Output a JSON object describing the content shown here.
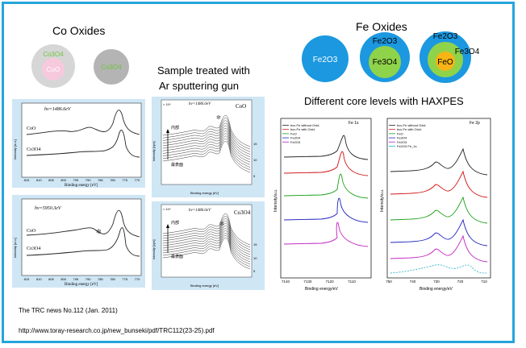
{
  "co_oxides": {
    "title": "Co Oxides",
    "core_shell": {
      "shell": "Co3O4",
      "core": "CoO",
      "shell_color": "#d6d6d6",
      "core_color": "#f7c9dc",
      "shell_text_color": "#6ec43c",
      "core_text_color": "#ffffff"
    },
    "single": {
      "label": "Co3O4",
      "color": "#b4b4b4",
      "text_color": "#6ec43c"
    }
  },
  "fe_oxides": {
    "title": "Fe Oxides",
    "particles": [
      {
        "layers": [
          "Fe2O3"
        ]
      },
      {
        "layers": [
          "Fe2O3",
          "Fe3O4"
        ]
      },
      {
        "layers": [
          "Fe2O3",
          "Fe3O4",
          "FeO"
        ]
      }
    ],
    "colors": {
      "fe2o3": "#1c98e0",
      "fe3o4": "#8fd34a",
      "feo": "#f6b416"
    }
  },
  "sputter": {
    "title_line1": "Sample treated with",
    "title_line2": "Ar sputtering gun"
  },
  "haxpes_title": "Different core levels with HAXPES",
  "plots": {
    "a1": {
      "energy": "hν=1486.6eV",
      "labels": [
        "CoO",
        "Co3O4"
      ],
      "ylabel": "Intensity [a.u.]",
      "xlabel": "Binding energy [eV]",
      "ticks": [
        "815",
        "810",
        "805",
        "800",
        "795",
        "790",
        "785",
        "780",
        "775",
        "770"
      ]
    },
    "a2": {
      "energy": "hν=5950.3eV",
      "labels": [
        "CoO",
        "Co3O4"
      ],
      "ylabel": "Intensity [a.u.]",
      "xlabel": "Binding energy [eV]",
      "ticks": [
        "815",
        "810",
        "805",
        "800",
        "795",
        "790",
        "785",
        "780",
        "775",
        "770"
      ]
    },
    "b1": {
      "energy": "hν=1486.6eV",
      "name": "CoO",
      "scale": "× 10⁴",
      "top": "内部",
      "bottom": "最表面",
      "ylabel": "Intensity [cps]",
      "xlabel": "Binding energy [eV]"
    },
    "b2": {
      "energy": "hν=1486.6eV",
      "name": "Co3O4",
      "scale": "× 10⁴",
      "top": "内部",
      "bottom": "最表面",
      "ylabel": "Intensity [cps]",
      "xlabel": "Binding energy [eV]"
    },
    "c1": {
      "core": "Fe 1s",
      "legend": [
        "bcc-Fe without Oxid.",
        "bcc-Fe with Oxid.",
        "FeO",
        "Fe3O4",
        "Fe2O3"
      ],
      "xlabel": "Binding energy/eV",
      "ylabel": "Intensity/a.u.",
      "ticks": [
        "7140",
        "7130",
        "7120",
        "7110"
      ]
    },
    "c2": {
      "core": "Fe 2p",
      "legend": [
        "bcc-Fe without Oxid.",
        "bcc-Fe with Oxid.",
        "FeO",
        "Fe3O4",
        "Fe2O3",
        "Fe2O3 Fe_1s"
      ],
      "xlabel": "Binding energy/eV",
      "ylabel": "Intensity/a.u.",
      "ticks": [
        "750",
        "740",
        "730",
        "720",
        "710"
      ]
    }
  },
  "series_colors": [
    "#222222",
    "#d01010",
    "#1aa01a",
    "#2020c0",
    "#c020c0",
    "#20b0c8"
  ],
  "references": {
    "source": "The TRC news No.112 (Jan. 2011)",
    "url": "http://www.toray-research.co.jp/new_bunseki/pdf/TRC112(23-25).pdf"
  }
}
